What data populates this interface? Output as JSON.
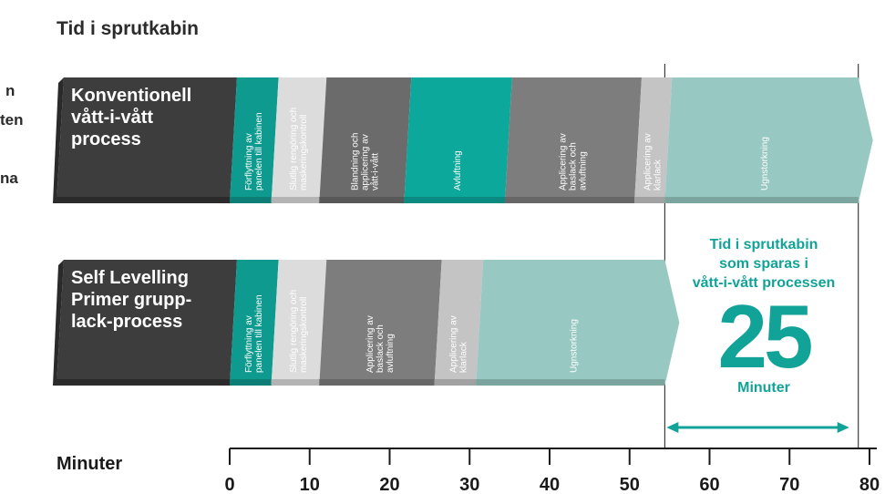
{
  "title": "Tid i sprutkabin",
  "side_fragments": [
    "n",
    "ten",
    "na"
  ],
  "colors": {
    "dark": "#3d3d3d",
    "teal": "#0f9a8f",
    "teal_bright": "#0ca89c",
    "light_gray": "#dcdcdc",
    "mid_gray": "#6b6b6b",
    "gray": "#7d7d7d",
    "lighter_gray": "#c4c4c4",
    "light_teal": "#97c9c2",
    "accent_text": "#11a398"
  },
  "chart_data": {
    "type": "gantt",
    "xlabel": "Minuter",
    "xlim": [
      0,
      80
    ],
    "ticks": [
      0,
      10,
      20,
      30,
      40,
      50,
      60,
      70,
      80
    ],
    "rows": [
      {
        "label": "Konventionell\nvått-i-vått\nprocess",
        "segments": [
          {
            "label": "Förflyttning av\npanelen till kabinen",
            "start": 0,
            "end": 5.2,
            "color": "teal",
            "text": "light"
          },
          {
            "label": "Slutlig rengöring och\nmaskeringskontroll",
            "start": 5.2,
            "end": 11.2,
            "color": "light_gray",
            "text": "light"
          },
          {
            "label": "Blandning och\napplicering av\nvått-i-vått",
            "start": 11.2,
            "end": 21.8,
            "color": "mid_gray",
            "text": "light"
          },
          {
            "label": "Avluftning",
            "start": 21.8,
            "end": 34.4,
            "color": "teal_bright",
            "text": "light"
          },
          {
            "label": "Applicering av\nbaslack och\navluftning",
            "start": 34.4,
            "end": 50.6,
            "color": "gray",
            "text": "light"
          },
          {
            "label": "Applicering av\nklarlack",
            "start": 50.6,
            "end": 54.4,
            "color": "lighter_gray",
            "text": "light"
          },
          {
            "label": "Ugnstorkning",
            "start": 54.4,
            "end": 78.6,
            "color": "light_teal",
            "text": "light"
          }
        ]
      },
      {
        "label": "Self Levelling\nPrimer grupp-\nlack-process",
        "segments": [
          {
            "label": "Förflyttning av\npanelen till kabinen",
            "start": 0,
            "end": 5.2,
            "color": "teal",
            "text": "light"
          },
          {
            "label": "Slutlig rengöring och\nmaskeringskontroll",
            "start": 5.2,
            "end": 11.2,
            "color": "light_gray",
            "text": "light"
          },
          {
            "label": "Applicering av\nbaslack och\navluftning",
            "start": 11.2,
            "end": 25.6,
            "color": "gray",
            "text": "light"
          },
          {
            "label": "Applicering av\nklarlack",
            "start": 25.6,
            "end": 30.8,
            "color": "lighter_gray",
            "text": "light"
          },
          {
            "label": "Ugnstorkning",
            "start": 30.8,
            "end": 54.4,
            "color": "light_teal",
            "text": "light"
          }
        ]
      }
    ],
    "savings": {
      "label": "Tid i sprutkabin\nsom sparas i\nvått-i-vått processen",
      "value": "25",
      "unit": "Minuter",
      "start": 54.4,
      "end": 78.6
    }
  }
}
